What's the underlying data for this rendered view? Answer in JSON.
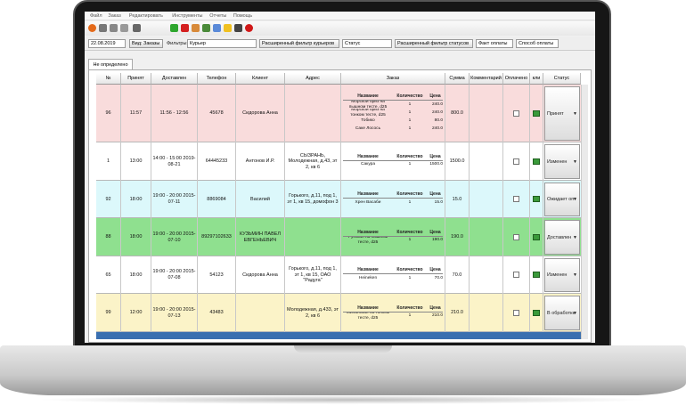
{
  "menu": [
    "Файл",
    "Заказ",
    "Редактировать",
    "Инструменты",
    "Отчеты",
    "Помощь"
  ],
  "filters": {
    "date": "22.08.2019",
    "view": "Вид: Заказы",
    "label": "Фильтры:",
    "courier": "Курьер",
    "courier_ext": "Расширенный фильтр курьеров",
    "status": "Статус",
    "status_ext": "Расширенный фильтр статусов",
    "payment_fact": "Факт оплаты",
    "payment_method": "Способ оплаты"
  },
  "tab": "Не определено",
  "table": {
    "columns": [
      "№",
      "Принят",
      "Доставлен",
      "Телефон",
      "Клиент",
      "Адрес",
      "Заказ",
      "Сумма",
      "Комментарий",
      "Оплачено",
      "кли",
      "Статус"
    ],
    "order_columns": [
      "Название",
      "Количество",
      "Цена"
    ],
    "rows": [
      {
        "num": "96",
        "accepted": "11:57",
        "delivered": "11:56 - 12:56",
        "phone": "45678",
        "client": "Сидорова Анна",
        "address": "",
        "items": [
          [
            "Морской бриз на пышном тесте, d25",
            "1",
            "240.0"
          ],
          [
            "Морской бриз на тонком тесте, d25",
            "1",
            "240.0"
          ],
          [
            "Тобико",
            "1",
            "80.0"
          ],
          [
            "Саке Лосось",
            "1",
            "240.0"
          ]
        ],
        "sum": "800.0",
        "status": "Принят",
        "color": "#f9dcdc"
      },
      {
        "num": "1",
        "accepted": "13:00",
        "delivered": "14:00 - 15:00 2019-08-21",
        "phone": "64445233",
        "client": "Антонов И.Р.",
        "address": "СЫЗРАНЬ, Молодежная, д.43, эт 2, кв 6",
        "items": [
          [
            "Сакура",
            "1",
            "1500.0"
          ]
        ],
        "sum": "1500.0",
        "status": "Изменен",
        "color": "#ffffff"
      },
      {
        "num": "92",
        "accepted": "18:00",
        "delivered": "19:00 - 20:00 2015-07-11",
        "phone": "8869084",
        "client": "Василий",
        "address": "Горького, д.11, под 1, эт 1, кв 15, домофон 3",
        "items": [
          [
            "Хрен Васаби",
            "1",
            "15.0"
          ]
        ],
        "sum": "15.0",
        "status": "Ожидает опт",
        "color": "#dcf8fb"
      },
      {
        "num": "88",
        "accepted": "18:00",
        "delivered": "19:00 - 20:00 2015-07-10",
        "phone": "89297102633",
        "client": "КУЗЬМИН ПАВЕЛ ЕВГЕНЬЕВИЧ",
        "address": "",
        "items": [
          [
            "Русская на пышном тесте, d25",
            "1",
            "190.0"
          ]
        ],
        "sum": "190.0",
        "status": "Доставлен",
        "color": "#8fe08f"
      },
      {
        "num": "65",
        "accepted": "18:00",
        "delivered": "19:00 - 20:00 2015-07-08",
        "phone": "54123",
        "client": "Сидорова Анна",
        "address": "Горького, д.11, под 1, эт 1, кв 15, ОАО \"Радуга\"",
        "items": [
          [
            "Heineken",
            "1",
            "70.0"
          ]
        ],
        "sum": "70.0",
        "status": "Изменен",
        "color": "#ffffff"
      },
      {
        "num": "99",
        "accepted": "12:00",
        "delivered": "19:00 - 20:00 2015-07-13",
        "phone": "43483",
        "client": "",
        "address": "Молодежная, д.433, эт 2, кв 6",
        "items": [
          [
            "Миланская на тонком тесте, d25",
            "1",
            "210.0"
          ]
        ],
        "sum": "210.0",
        "status": "В обработке",
        "color": "#fbf3c8"
      }
    ]
  }
}
